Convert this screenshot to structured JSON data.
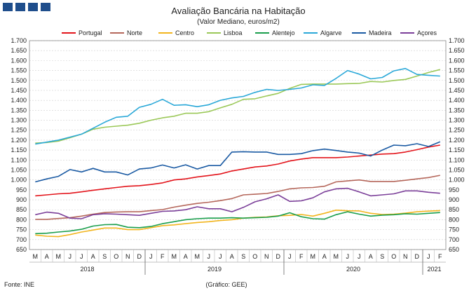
{
  "logo_color": "#1f4e8c",
  "footer": {
    "source": "Fonte: INE",
    "credit": "(Gráfico: GEE)"
  },
  "chart_data": {
    "type": "line",
    "title": "Avaliação Bancária na Habitação",
    "subtitle": "(Valor Mediano, euros/m2)",
    "ylim": [
      650,
      1700
    ],
    "ytick_step": 50,
    "grid": true,
    "legend_position": "top",
    "month_labels": [
      "M",
      "A",
      "M",
      "J",
      "J",
      "A",
      "S",
      "O",
      "N",
      "D",
      "J",
      "F",
      "M",
      "A",
      "M",
      "J",
      "J",
      "A",
      "S",
      "O",
      "N",
      "D",
      "J",
      "F",
      "M",
      "A",
      "M",
      "J",
      "J",
      "A",
      "S",
      "O",
      "N",
      "D",
      "J",
      "F"
    ],
    "year_labels": [
      {
        "label": "2018",
        "start": 0,
        "end": 9
      },
      {
        "label": "2019",
        "start": 10,
        "end": 21
      },
      {
        "label": "2020",
        "start": 22,
        "end": 33
      },
      {
        "label": "2021",
        "start": 34,
        "end": 35
      }
    ],
    "series": [
      {
        "name": "Portugal",
        "color": "#e3141b",
        "values": [
          920,
          925,
          930,
          933,
          940,
          948,
          955,
          962,
          968,
          971,
          977,
          985,
          1000,
          1005,
          1015,
          1022,
          1030,
          1045,
          1055,
          1065,
          1070,
          1080,
          1095,
          1105,
          1112,
          1112,
          1112,
          1115,
          1120,
          1125,
          1130,
          1132,
          1140,
          1152,
          1165,
          1175
        ]
      },
      {
        "name": "Norte",
        "color": "#b5675b",
        "values": [
          802,
          802,
          806,
          810,
          818,
          828,
          836,
          839,
          840,
          840,
          846,
          851,
          863,
          873,
          882,
          888,
          896,
          906,
          925,
          928,
          932,
          942,
          955,
          960,
          962,
          968,
          990,
          995,
          1000,
          992,
          992,
          992,
          998,
          1005,
          1012,
          1023
        ]
      },
      {
        "name": "Centro",
        "color": "#f2b51e",
        "values": [
          723,
          717,
          715,
          725,
          738,
          748,
          758,
          758,
          750,
          750,
          760,
          770,
          774,
          780,
          786,
          790,
          796,
          800,
          808,
          812,
          814,
          820,
          822,
          826,
          818,
          832,
          848,
          845,
          844,
          832,
          826,
          828,
          833,
          840,
          843,
          846
        ]
      },
      {
        "name": "Lisboa",
        "color": "#9bc858",
        "values": [
          1185,
          1188,
          1195,
          1212,
          1230,
          1255,
          1265,
          1270,
          1275,
          1285,
          1300,
          1312,
          1320,
          1335,
          1335,
          1343,
          1362,
          1380,
          1405,
          1408,
          1422,
          1435,
          1460,
          1480,
          1482,
          1482,
          1482,
          1484,
          1485,
          1495,
          1492,
          1500,
          1505,
          1522,
          1540,
          1555
        ]
      },
      {
        "name": "Alentejo",
        "color": "#1a9e4c",
        "values": [
          730,
          732,
          738,
          743,
          752,
          768,
          775,
          776,
          762,
          760,
          766,
          780,
          790,
          800,
          805,
          808,
          808,
          810,
          808,
          810,
          812,
          818,
          835,
          815,
          805,
          803,
          825,
          840,
          828,
          818,
          823,
          825,
          830,
          828,
          832,
          836
        ]
      },
      {
        "name": "Algarve",
        "color": "#2aa8d8",
        "values": [
          1180,
          1190,
          1200,
          1215,
          1230,
          1260,
          1290,
          1315,
          1320,
          1365,
          1380,
          1405,
          1375,
          1378,
          1368,
          1378,
          1400,
          1412,
          1420,
          1440,
          1455,
          1450,
          1455,
          1462,
          1478,
          1475,
          1510,
          1550,
          1532,
          1508,
          1515,
          1548,
          1560,
          1530,
          1526,
          1522
        ]
      },
      {
        "name": "Madeira",
        "color": "#1a5aa3",
        "values": [
          990,
          1005,
          1018,
          1052,
          1040,
          1058,
          1040,
          1040,
          1025,
          1055,
          1060,
          1075,
          1060,
          1076,
          1055,
          1072,
          1072,
          1140,
          1142,
          1140,
          1140,
          1128,
          1128,
          1132,
          1147,
          1155,
          1148,
          1140,
          1135,
          1120,
          1150,
          1175,
          1172,
          1182,
          1168,
          1192
        ]
      },
      {
        "name": "Açores",
        "color": "#7b3f99",
        "values": [
          825,
          838,
          832,
          808,
          805,
          825,
          830,
          828,
          825,
          822,
          832,
          842,
          844,
          850,
          865,
          855,
          855,
          840,
          862,
          890,
          905,
          925,
          892,
          895,
          910,
          940,
          955,
          958,
          940,
          920,
          925,
          930,
          945,
          945,
          938,
          933
        ]
      }
    ]
  }
}
